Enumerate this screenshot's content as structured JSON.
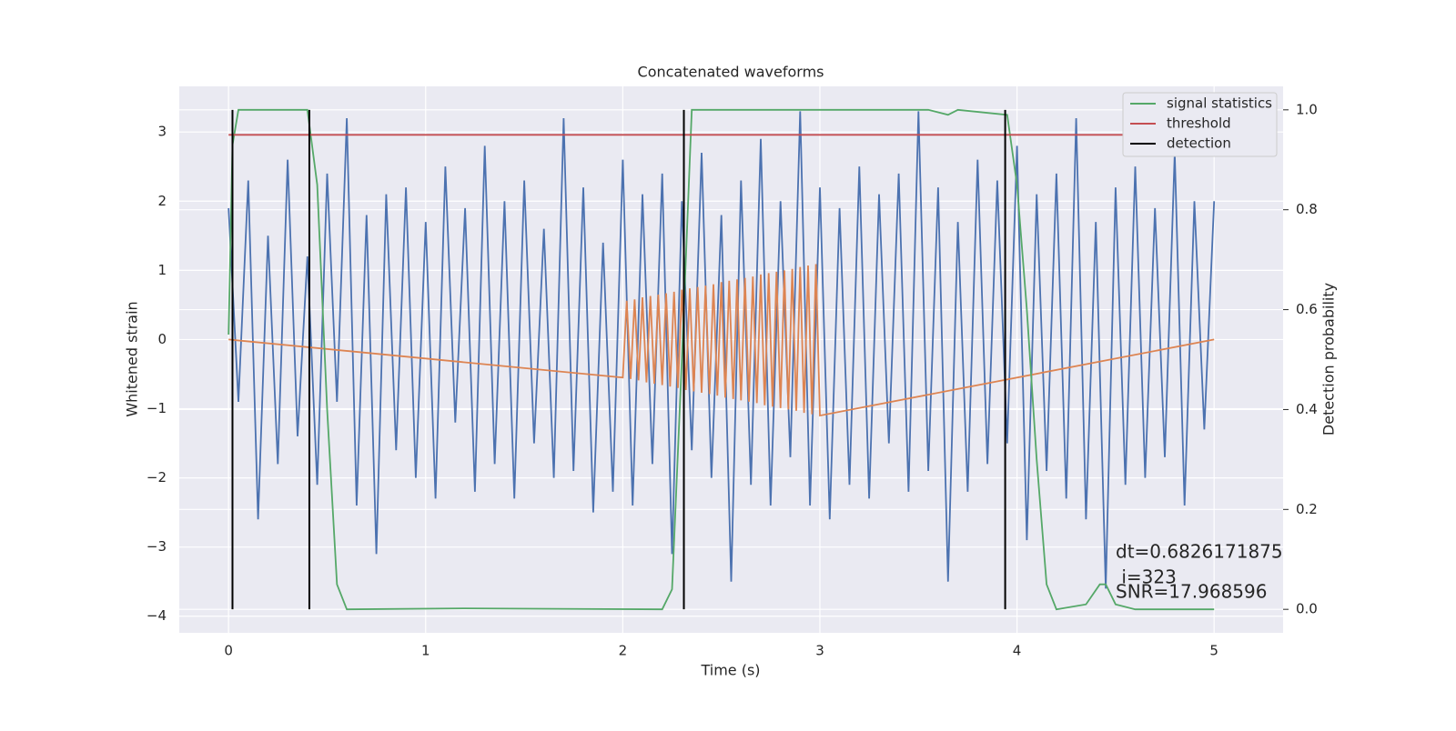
{
  "chart_data": {
    "type": "line",
    "title": "Concatenated waveforms",
    "xlabel": "Time (s)",
    "ylabel": "Whitened strain",
    "y2label": "Detection probability",
    "xlim": [
      -0.25,
      5.35
    ],
    "xticks": [
      0,
      1,
      2,
      3,
      4,
      5
    ],
    "ylim": [
      -4.24,
      3.66
    ],
    "yticks": [
      {
        "value": -4,
        "label": "−4"
      },
      {
        "value": -3,
        "label": "−3"
      },
      {
        "value": -2,
        "label": "−2"
      },
      {
        "value": -1,
        "label": "−1"
      },
      0,
      1,
      2,
      3
    ],
    "y2lim": [
      -0.047,
      1.047
    ],
    "y2ticks": [
      {
        "value": 0,
        "label": "0.0"
      },
      0.2,
      0.4,
      0.6,
      0.8,
      {
        "value": 1,
        "label": "1.0"
      }
    ],
    "grid": true,
    "legend": "upper right",
    "series": [
      {
        "color": "#4c72b0",
        "x": [
          0,
          0.05,
          0.1,
          0.15,
          0.2,
          0.25,
          0.3,
          0.35,
          0.4,
          0.45,
          0.5,
          0.55,
          0.6,
          0.65,
          0.7,
          0.75,
          0.8,
          0.85,
          0.9,
          0.95,
          1,
          1.05,
          1.1,
          1.15,
          1.2,
          1.25,
          1.3,
          1.35,
          1.4,
          1.45,
          1.5,
          1.55,
          1.6,
          1.65,
          1.7,
          1.75,
          1.8,
          1.85,
          1.9,
          1.95,
          2,
          2.05,
          2.1,
          2.15,
          2.2,
          2.25,
          2.3,
          2.35,
          2.4,
          2.45,
          2.5,
          2.55,
          2.6,
          2.65,
          2.7,
          2.75,
          2.8,
          2.85,
          2.9,
          2.95,
          3,
          3.05,
          3.1,
          3.15,
          3.2,
          3.25,
          3.3,
          3.35,
          3.4,
          3.45,
          3.5,
          3.55,
          3.6,
          3.65,
          3.7,
          3.75,
          3.8,
          3.85,
          3.9,
          3.95,
          4,
          4.05,
          4.1,
          4.15,
          4.2,
          4.25,
          4.3,
          4.35,
          4.4,
          4.45,
          4.5,
          4.55,
          4.6,
          4.65,
          4.7,
          4.75,
          4.8,
          4.85,
          4.9,
          4.95,
          5
        ],
        "values": [
          1.9,
          -0.9,
          2.3,
          -2.6,
          1.5,
          -1.8,
          2.6,
          -1.4,
          1.2,
          -2.1,
          2.4,
          -0.9,
          3.2,
          -2.4,
          1.8,
          -3.1,
          2.1,
          -1.6,
          2.2,
          -2.0,
          1.7,
          -2.3,
          2.5,
          -1.2,
          1.9,
          -2.2,
          2.8,
          -1.8,
          2.0,
          -2.3,
          2.3,
          -1.5,
          1.6,
          -2.0,
          3.2,
          -1.9,
          2.2,
          -2.5,
          1.4,
          -2.2,
          2.6,
          -2.4,
          2.1,
          -1.8,
          2.4,
          -3.1,
          2.0,
          -1.6,
          2.7,
          -2.0,
          1.8,
          -3.5,
          2.3,
          -2.1,
          2.9,
          -2.4,
          2.0,
          -1.7,
          3.3,
          -2.4,
          2.2,
          -2.6,
          1.9,
          -2.1,
          2.5,
          -2.3,
          2.1,
          -1.5,
          2.4,
          -2.2,
          3.3,
          -1.9,
          2.2,
          -3.5,
          1.7,
          -2.2,
          2.6,
          -1.8,
          2.3,
          -1.5,
          2.8,
          -2.9,
          2.1,
          -1.9,
          2.4,
          -2.3,
          3.2,
          -2.6,
          1.7,
          -3.6,
          2.2,
          -2.1,
          2.5,
          -2.0,
          1.9,
          -1.7,
          2.7,
          -2.4,
          2.0,
          -1.3,
          2.0
        ]
      },
      {
        "color": "#dd8452",
        "x": [
          0,
          2,
          2.02,
          2.04,
          2.06,
          2.08,
          2.1,
          2.12,
          2.14,
          2.16,
          2.18,
          2.2,
          2.22,
          2.24,
          2.26,
          2.28,
          2.3,
          2.32,
          2.34,
          2.36,
          2.38,
          2.4,
          2.42,
          2.44,
          2.46,
          2.48,
          2.5,
          2.52,
          2.54,
          2.56,
          2.58,
          2.6,
          2.62,
          2.64,
          2.66,
          2.68,
          2.7,
          2.72,
          2.74,
          2.76,
          2.78,
          2.8,
          2.82,
          2.84,
          2.86,
          2.88,
          2.9,
          2.92,
          2.94,
          2.96,
          2.98,
          3,
          5
        ],
        "values": [
          0,
          -0.55,
          0.56,
          -0.57,
          0.58,
          -0.59,
          0.61,
          -0.62,
          0.63,
          -0.64,
          0.65,
          -0.66,
          0.67,
          -0.68,
          0.69,
          -0.7,
          0.72,
          -0.73,
          0.74,
          -0.75,
          0.76,
          -0.77,
          0.78,
          -0.79,
          0.8,
          -0.81,
          0.83,
          -0.84,
          0.85,
          -0.86,
          0.87,
          -0.88,
          0.89,
          -0.9,
          0.91,
          -0.92,
          0.94,
          -0.95,
          0.96,
          -0.97,
          0.98,
          -0.99,
          1.0,
          -1.01,
          1.02,
          -1.03,
          1.05,
          -1.06,
          1.07,
          -1.08,
          1.09,
          -1.1,
          0
        ]
      },
      {
        "name": "signal statistics",
        "color": "#55a868",
        "axis": "y2",
        "x": [
          0,
          0.02,
          0.05,
          0.4,
          0.45,
          0.5,
          0.55,
          0.6,
          1.2,
          2.2,
          2.25,
          2.3,
          2.35,
          3.55,
          3.65,
          3.7,
          3.95,
          4.0,
          4.05,
          4.1,
          4.15,
          4.2,
          4.35,
          4.42,
          4.45,
          4.5,
          4.6,
          5
        ],
        "values": [
          0.55,
          0.93,
          1.0,
          1.0,
          0.85,
          0.4,
          0.05,
          0.0,
          0.002,
          0.0,
          0.04,
          0.5,
          1.0,
          1.0,
          0.99,
          1.0,
          0.99,
          0.85,
          0.6,
          0.3,
          0.05,
          0.0,
          0.01,
          0.05,
          0.05,
          0.01,
          0.0,
          0.0
        ]
      },
      {
        "name": "threshold",
        "color": "#c44e52",
        "axis": "y2",
        "x": [
          0,
          5
        ],
        "values": [
          0.95,
          0.95
        ]
      },
      {
        "name": "detection",
        "color": "#000000",
        "axis": "y2",
        "kind": "vlines",
        "x": [
          0.02,
          0.41,
          2.31,
          3.94
        ],
        "ymin": [
          0,
          0,
          0,
          0
        ],
        "ymax": [
          1,
          1,
          1,
          1
        ]
      }
    ],
    "annotations": [
      "dt=0.6826171875",
      " i=323",
      "SNR=17.968596"
    ]
  }
}
